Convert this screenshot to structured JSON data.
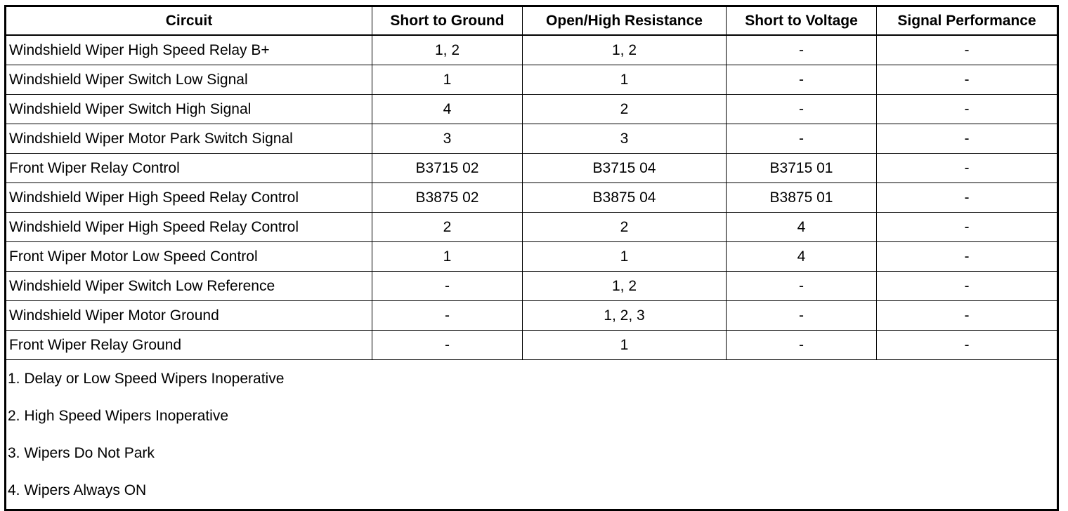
{
  "table": {
    "headers": [
      "Circuit",
      "Short to Ground",
      "Open/High Resistance",
      "Short to Voltage",
      "Signal Performance"
    ],
    "rows": [
      [
        "Windshield Wiper High Speed Relay B+",
        "1, 2",
        "1, 2",
        "-",
        "-"
      ],
      [
        "Windshield Wiper Switch Low Signal",
        "1",
        "1",
        "-",
        "-"
      ],
      [
        "Windshield Wiper Switch High Signal",
        "4",
        "2",
        "-",
        "-"
      ],
      [
        "Windshield Wiper Motor Park Switch Signal",
        "3",
        "3",
        "-",
        "-"
      ],
      [
        "Front Wiper Relay Control",
        "B3715 02",
        "B3715 04",
        "B3715 01",
        "-"
      ],
      [
        "Windshield Wiper High Speed Relay Control",
        "B3875 02",
        "B3875 04",
        "B3875 01",
        "-"
      ],
      [
        "Windshield Wiper High Speed Relay Control",
        "2",
        "2",
        "4",
        "-"
      ],
      [
        "Front Wiper Motor Low Speed Control",
        "1",
        "1",
        "4",
        "-"
      ],
      [
        "Windshield Wiper Switch Low Reference",
        "-",
        "1, 2",
        "-",
        "-"
      ],
      [
        "Windshield Wiper Motor Ground",
        "-",
        "1, 2, 3",
        "-",
        "-"
      ],
      [
        "Front Wiper Relay Ground",
        "-",
        "1",
        "-",
        "-"
      ]
    ],
    "notes": [
      "1. Delay or Low Speed Wipers Inoperative",
      "2. High Speed Wipers Inoperative",
      "3. Wipers Do Not Park",
      "4. Wipers Always ON"
    ]
  }
}
